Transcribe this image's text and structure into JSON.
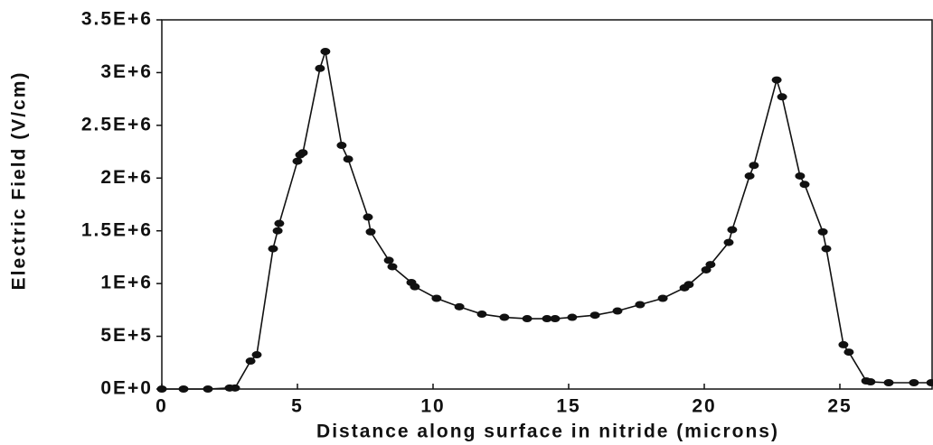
{
  "chart_data": {
    "type": "line",
    "x_label": "Distance along surface in nitride (microns)",
    "y_label": "Electric Field (V/cm)",
    "color": "#111111",
    "markers": true,
    "xlim": [
      0,
      28.4
    ],
    "ylim": [
      0,
      3500000
    ],
    "xticks": [
      0,
      5,
      10,
      15,
      20,
      25
    ],
    "yticks": [
      {
        "value": 0,
        "label": "0E+0"
      },
      {
        "value": 500000,
        "label": "5E+5"
      },
      {
        "value": 1000000,
        "label": "1E+6"
      },
      {
        "value": 1500000,
        "label": "1.5E+6"
      },
      {
        "value": 2000000,
        "label": "2E+6"
      },
      {
        "value": 2500000,
        "label": "2.5E+6"
      },
      {
        "value": 3000000,
        "label": "3E+6"
      },
      {
        "value": 3500000,
        "label": "3.5E+6"
      }
    ],
    "x": [
      0,
      0.8,
      1.7,
      2.5,
      2.7,
      3.27,
      3.5,
      4.1,
      4.27,
      4.33,
      5.0,
      5.1,
      5.2,
      5.83,
      6.03,
      6.63,
      6.87,
      7.6,
      7.7,
      8.37,
      8.5,
      9.2,
      9.33,
      10.13,
      10.97,
      11.8,
      12.63,
      13.47,
      14.2,
      14.5,
      15.13,
      15.97,
      16.8,
      17.63,
      18.47,
      19.27,
      19.43,
      20.07,
      20.23,
      20.9,
      21.03,
      21.67,
      21.83,
      22.67,
      22.87,
      23.53,
      23.7,
      24.37,
      24.5,
      25.13,
      25.33,
      25.97,
      26.13,
      26.8,
      27.73,
      28.37
    ],
    "values": [
      0,
      0,
      0,
      10000,
      10000,
      265000,
      325000,
      1330000,
      1500000,
      1570000,
      2160000,
      2220000,
      2240000,
      3040000,
      3200000,
      2310000,
      2180000,
      1630000,
      1490000,
      1220000,
      1160000,
      1010000,
      970000,
      860000,
      780000,
      710000,
      680000,
      667000,
      667000,
      667000,
      680000,
      700000,
      740000,
      800000,
      860000,
      960000,
      990000,
      1130000,
      1180000,
      1390000,
      1510000,
      2020000,
      2120000,
      2930000,
      2770000,
      2020000,
      1940000,
      1490000,
      1330000,
      420000,
      350000,
      77000,
      68000,
      60000,
      60000,
      60000
    ]
  }
}
